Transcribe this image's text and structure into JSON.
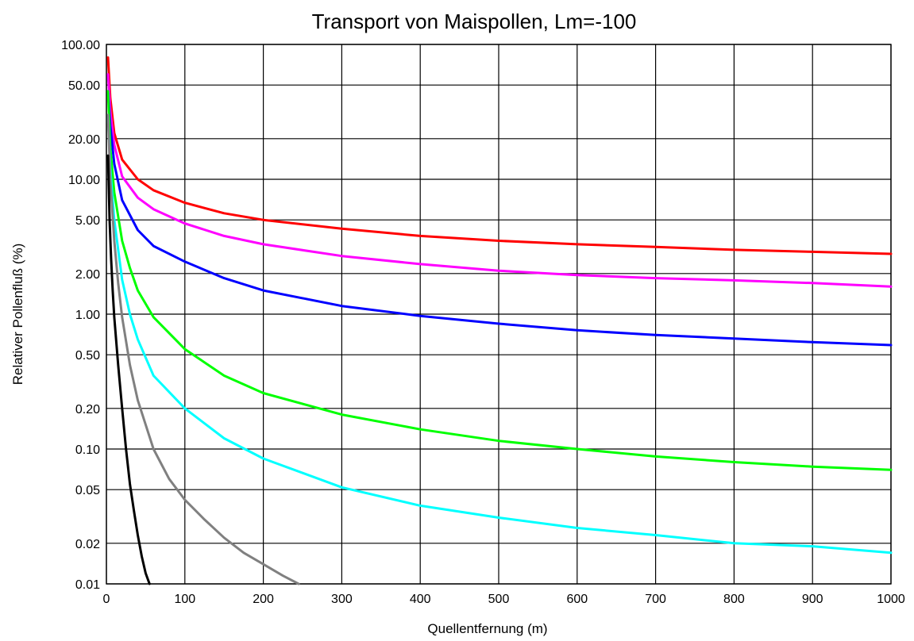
{
  "chart_data": {
    "type": "line",
    "title": "Transport von Maispollen, Lm=-100",
    "xlabel": "Quellentfernung (m)",
    "ylabel": "Relativer Pollenfluß (%)",
    "xlim": [
      0,
      1000
    ],
    "ylim": [
      0.01,
      100
    ],
    "y_scale": "log",
    "grid": true,
    "x_ticks": [
      "0",
      "100",
      "200",
      "300",
      "400",
      "500",
      "600",
      "700",
      "800",
      "900",
      "1000"
    ],
    "x_tick_values": [
      0,
      100,
      200,
      300,
      400,
      500,
      600,
      700,
      800,
      900,
      1000
    ],
    "y_ticks": [
      "100.00",
      "50.00",
      "20.00",
      "10.00",
      "5.00",
      "2.00",
      "1.00",
      "0.50",
      "0.20",
      "0.10",
      "0.05",
      "0.02",
      "0.01"
    ],
    "y_tick_values": [
      100,
      50,
      20,
      10,
      5,
      2,
      1,
      0.5,
      0.2,
      0.1,
      0.05,
      0.02,
      0.01
    ],
    "series": [
      {
        "color": "#ff0000",
        "x": [
          2,
          5,
          10,
          20,
          40,
          60,
          100,
          150,
          200,
          300,
          400,
          500,
          600,
          700,
          800,
          900,
          1000
        ],
        "y": [
          80,
          40,
          22,
          14,
          10,
          8.3,
          6.7,
          5.6,
          5.0,
          4.3,
          3.8,
          3.5,
          3.3,
          3.15,
          3.0,
          2.9,
          2.8
        ]
      },
      {
        "color": "#ff00ff",
        "x": [
          2,
          5,
          10,
          20,
          40,
          60,
          100,
          150,
          200,
          300,
          400,
          500,
          600,
          700,
          800,
          900,
          1000
        ],
        "y": [
          60,
          32,
          18,
          10.5,
          7.3,
          6.0,
          4.7,
          3.8,
          3.3,
          2.7,
          2.35,
          2.1,
          1.95,
          1.85,
          1.78,
          1.7,
          1.6
        ]
      },
      {
        "color": "#0000ff",
        "x": [
          2,
          5,
          10,
          20,
          40,
          60,
          100,
          150,
          200,
          300,
          400,
          500,
          600,
          700,
          800,
          900,
          1000
        ],
        "y": [
          45,
          25,
          13,
          7.0,
          4.2,
          3.2,
          2.45,
          1.85,
          1.5,
          1.15,
          0.97,
          0.85,
          0.76,
          0.7,
          0.66,
          0.62,
          0.59
        ]
      },
      {
        "color": "#00ff00",
        "x": [
          2,
          5,
          10,
          20,
          30,
          40,
          60,
          100,
          150,
          200,
          300,
          400,
          500,
          600,
          700,
          800,
          900,
          1000
        ],
        "y": [
          45,
          17,
          8,
          3.5,
          2.2,
          1.5,
          0.95,
          0.55,
          0.35,
          0.26,
          0.18,
          0.14,
          0.115,
          0.1,
          0.088,
          0.08,
          0.074,
          0.07
        ]
      },
      {
        "color": "#00ffff",
        "x": [
          2,
          5,
          10,
          20,
          30,
          40,
          60,
          100,
          150,
          200,
          300,
          400,
          500,
          600,
          700,
          800,
          900,
          1000
        ],
        "y": [
          30,
          12,
          5,
          1.8,
          1.0,
          0.65,
          0.35,
          0.2,
          0.12,
          0.085,
          0.052,
          0.038,
          0.031,
          0.026,
          0.023,
          0.02,
          0.019,
          0.017
        ]
      },
      {
        "color": "#808080",
        "x": [
          2,
          5,
          10,
          15,
          20,
          30,
          40,
          60,
          80,
          100,
          125,
          150,
          175,
          200,
          225,
          245
        ],
        "y": [
          30,
          10,
          3.5,
          1.7,
          0.95,
          0.42,
          0.23,
          0.1,
          0.06,
          0.042,
          0.03,
          0.022,
          0.017,
          0.014,
          0.0115,
          0.01
        ]
      },
      {
        "color": "#000000",
        "x": [
          2,
          4,
          6,
          8,
          10,
          15,
          20,
          25,
          30,
          35,
          40,
          45,
          50,
          55
        ],
        "y": [
          15,
          5,
          2.6,
          1.5,
          0.95,
          0.42,
          0.2,
          0.1,
          0.055,
          0.035,
          0.023,
          0.016,
          0.012,
          0.01
        ]
      }
    ]
  }
}
